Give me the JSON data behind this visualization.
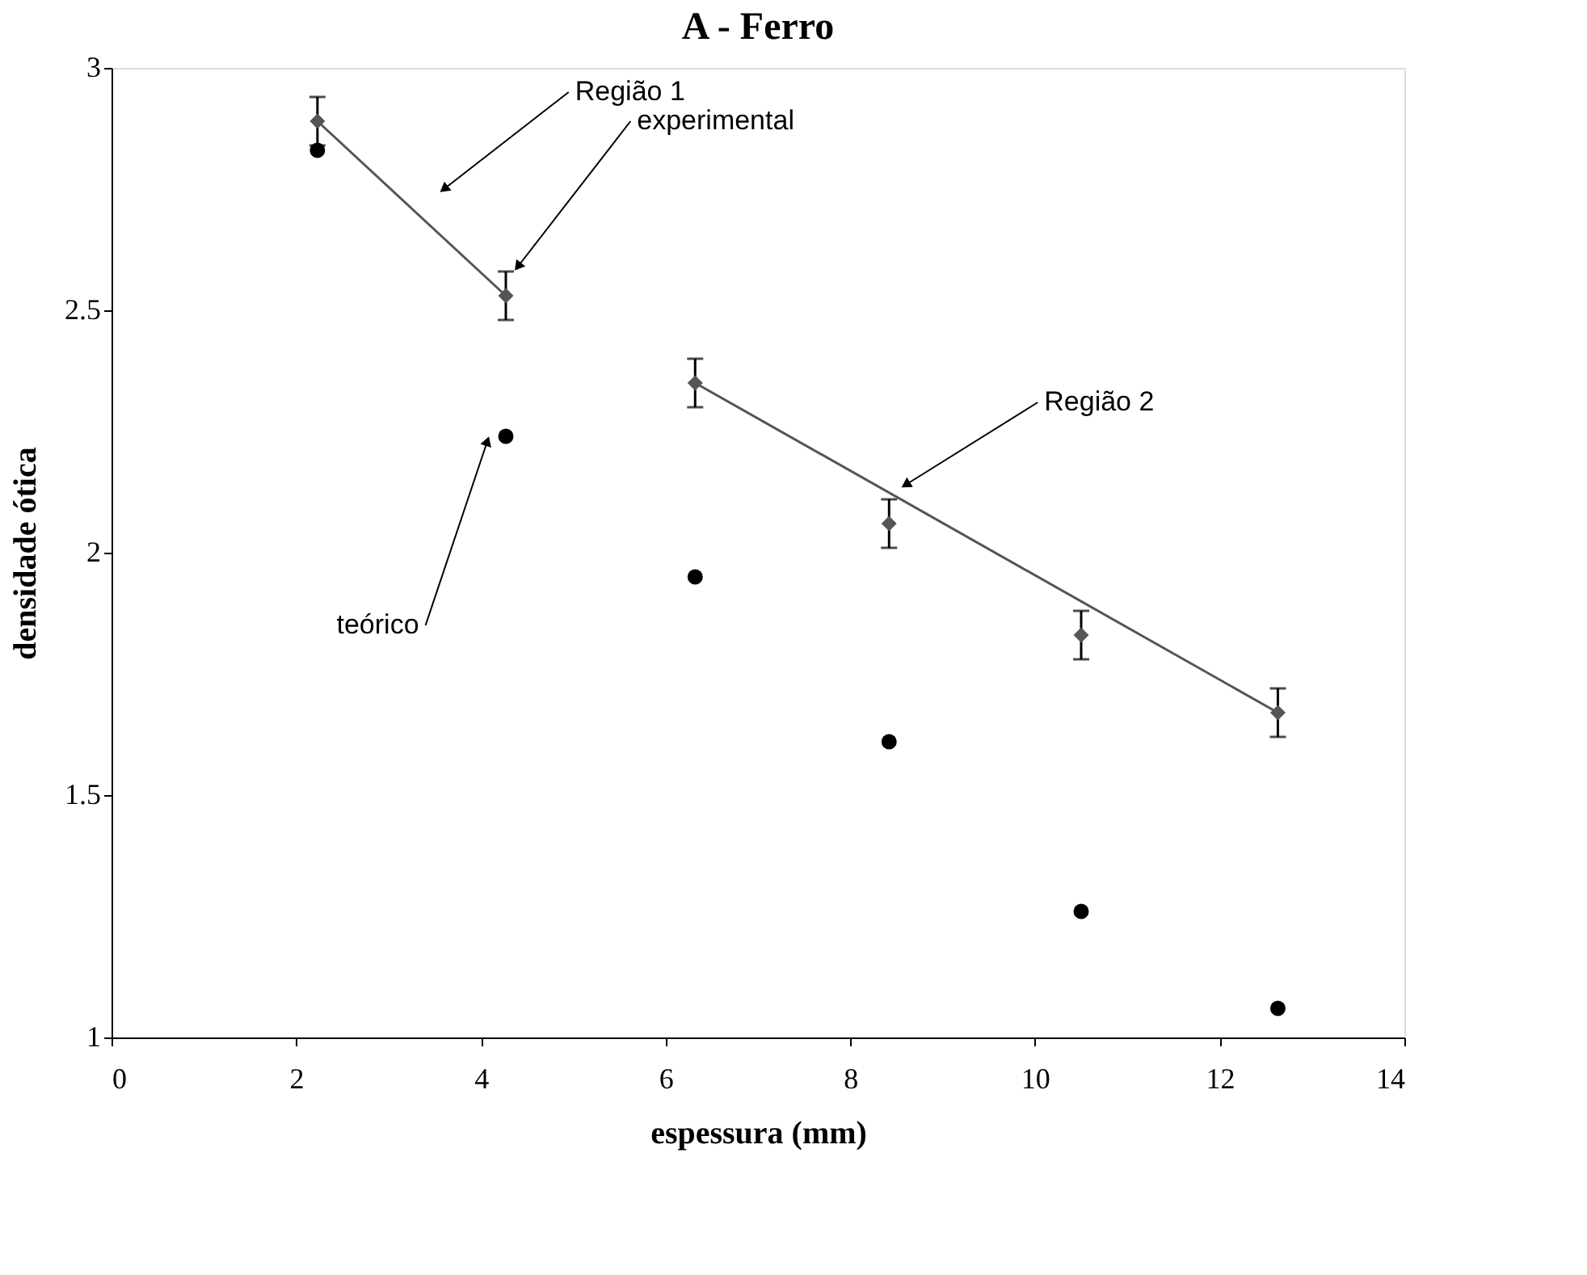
{
  "chart_data": {
    "type": "scatter",
    "title": "A - Ferro",
    "xlabel": "espessura (mm)",
    "ylabel": "densidade ótica",
    "x": [
      2.23,
      4.27,
      6.32,
      8.42,
      10.5,
      12.63
    ],
    "series": [
      {
        "type": "scatter",
        "marker": "diamond",
        "color": "#555555",
        "values": [
          2.89,
          2.53,
          2.35,
          2.06,
          1.83,
          1.67
        ],
        "errors": [
          0.05,
          0.05,
          0.05,
          0.05,
          0.05,
          0.05
        ]
      },
      {
        "type": "scatter",
        "marker": "circle",
        "color": "#000000",
        "values": [
          2.83,
          2.24,
          1.95,
          1.61,
          1.26,
          1.06
        ]
      },
      {
        "type": "line",
        "color": "#555555",
        "x": [
          2.23,
          4.27
        ],
        "values": [
          2.89,
          2.53
        ]
      },
      {
        "type": "line",
        "color": "#555555",
        "x": [
          6.32,
          12.63
        ],
        "values": [
          2.35,
          1.67
        ]
      }
    ],
    "annotations": [
      {
        "text": "Região 1",
        "x": 3.6,
        "y": 2.75
      },
      {
        "text": "experimental",
        "x": 4.4,
        "y": 2.59
      },
      {
        "text": "teórico",
        "x": 4.07,
        "y": 2.23
      },
      {
        "text": "Região 2",
        "x": 8.6,
        "y": 2.14
      }
    ],
    "xlim": [
      0,
      14
    ],
    "xticks": [
      0,
      2,
      4,
      6,
      8,
      10,
      12,
      14
    ],
    "ylim": [
      1,
      3
    ],
    "yticks": [
      1,
      1.5,
      2,
      2.5,
      3
    ],
    "grid": false
  }
}
